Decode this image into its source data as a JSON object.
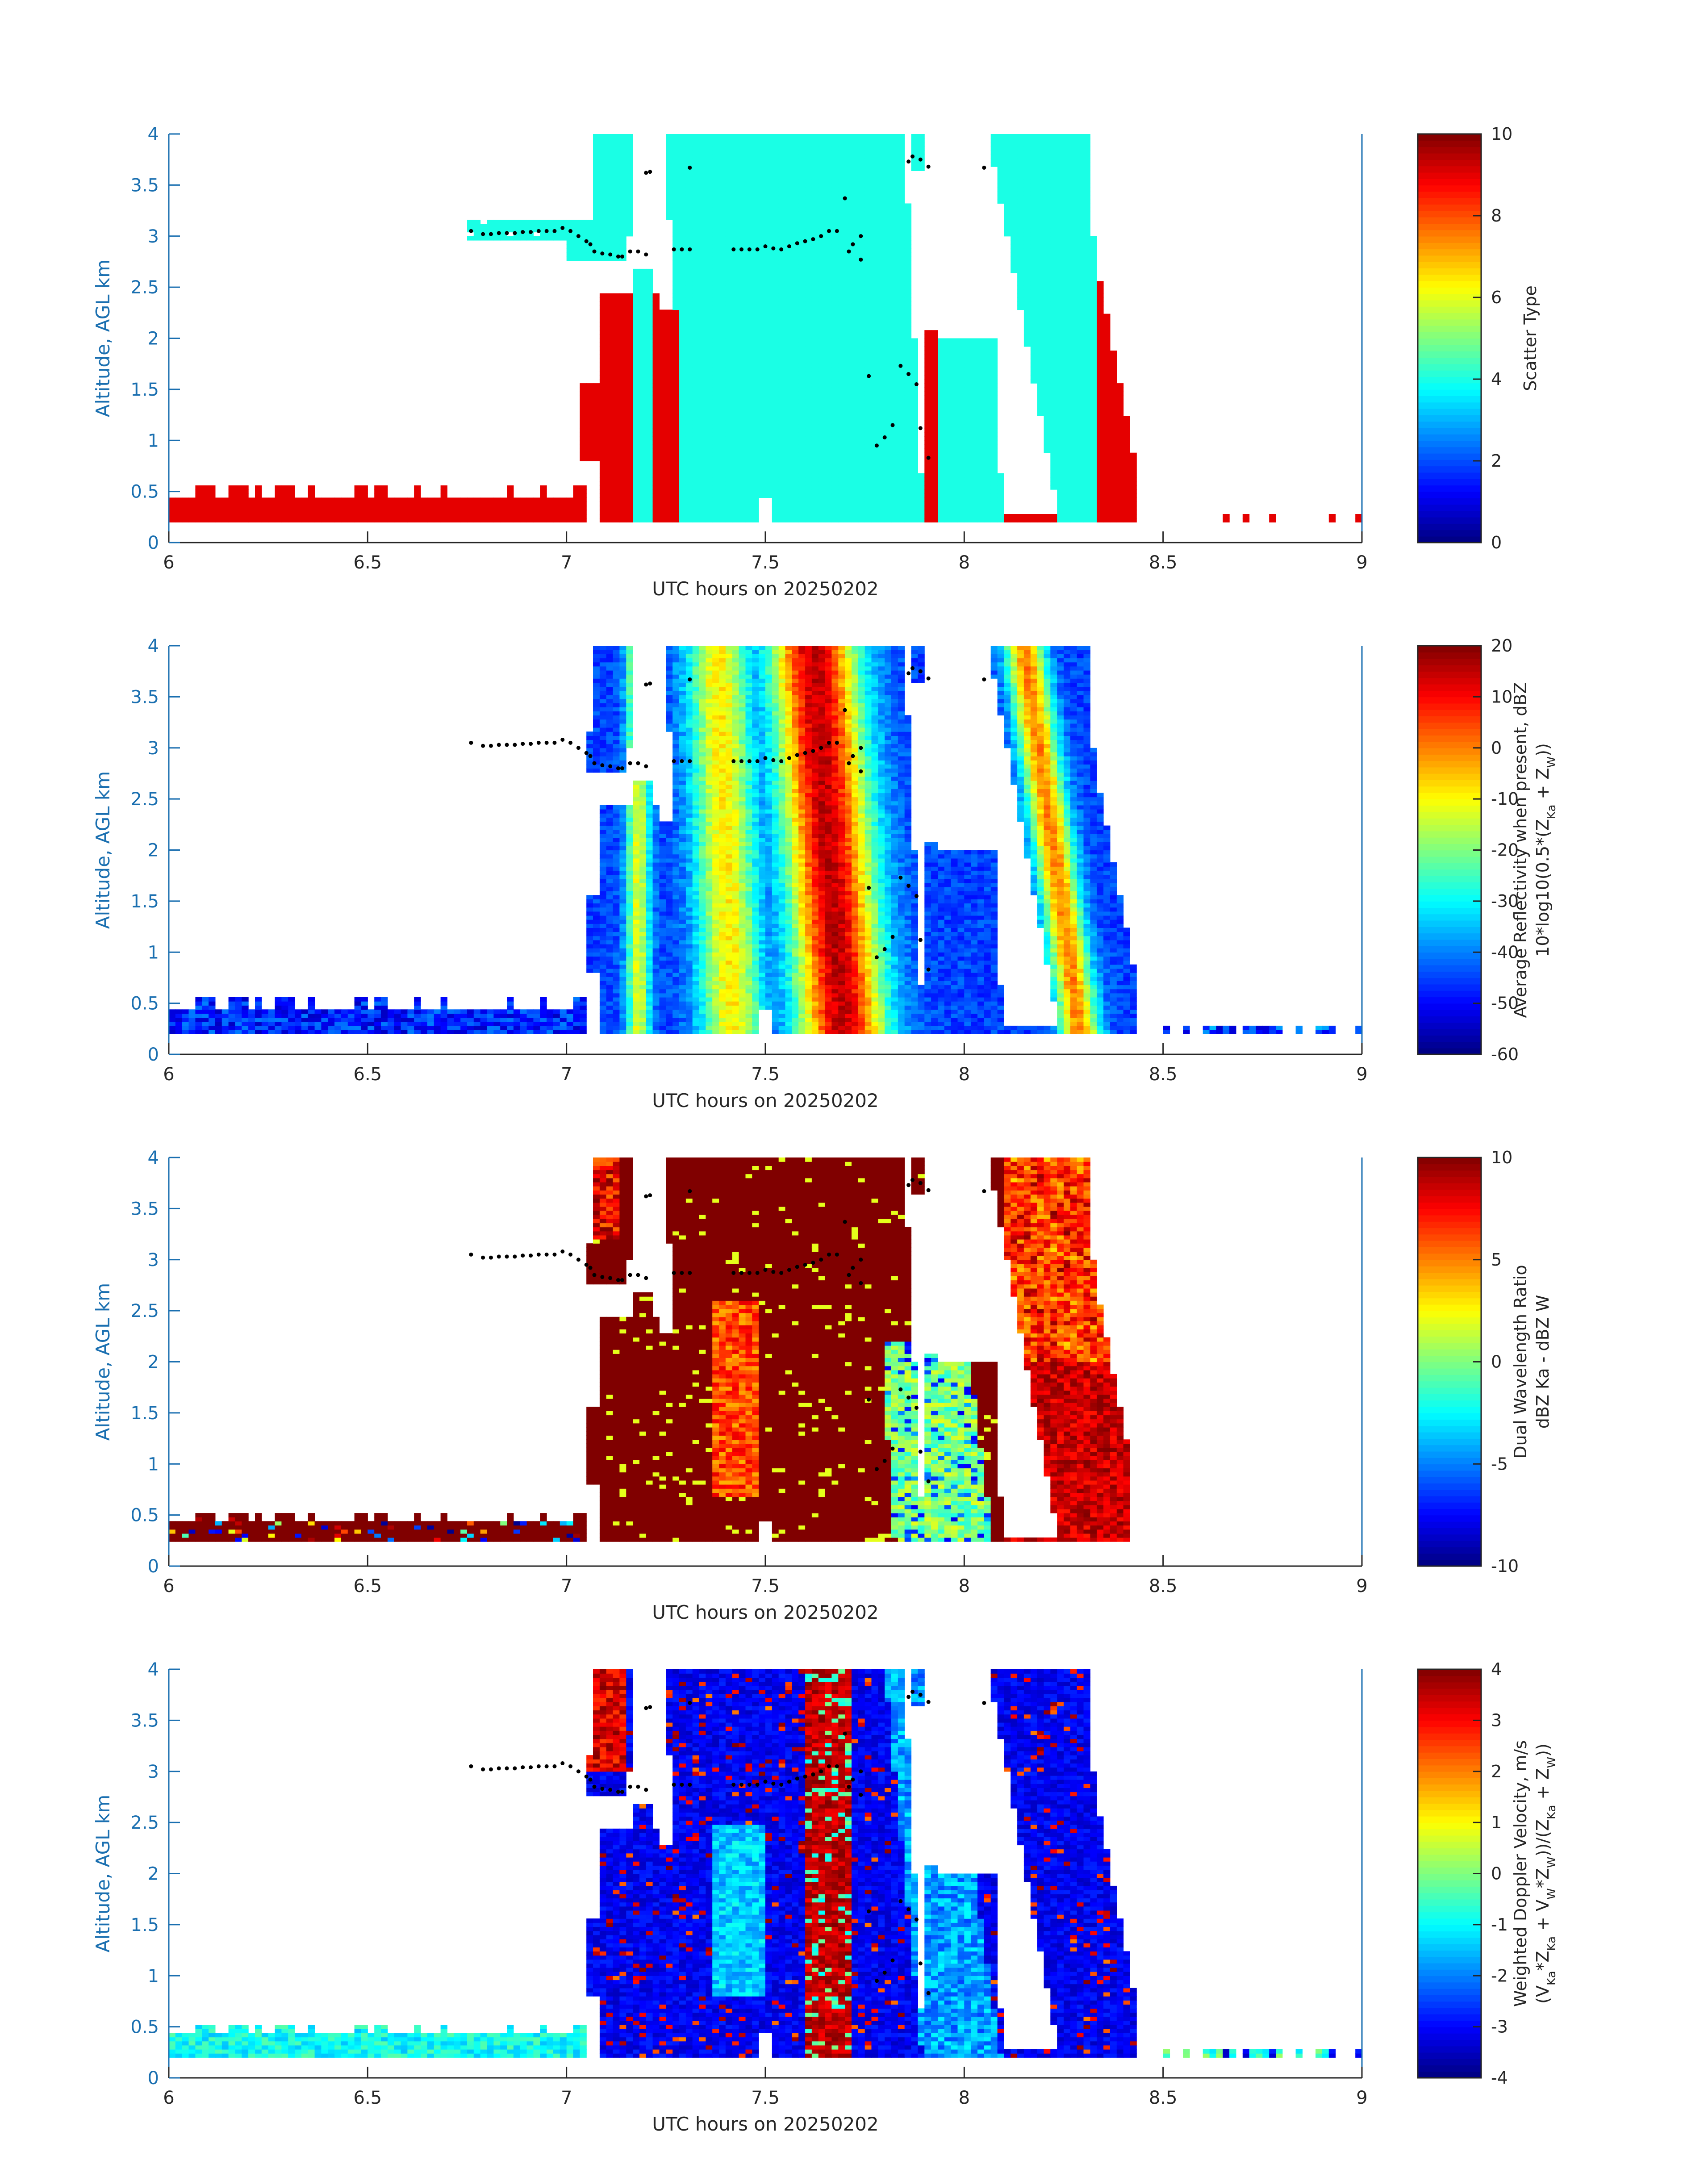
{
  "figure": {
    "x_label": "UTC hours on 20250202",
    "y_label": "Altitude, AGL km"
  },
  "chart_data": [
    {
      "type": "heatmap",
      "xlabel": "UTC hours on 20250202",
      "ylabel": "Altitude, AGL km",
      "xlim": [
        6,
        9
      ],
      "ylim": [
        0,
        4
      ],
      "xticks": [
        "6",
        "6.5",
        "7",
        "7.5",
        "8",
        "8.5",
        "9"
      ],
      "yticks": [
        "0",
        "0.5",
        "1",
        "1.5",
        "2",
        "2.5",
        "3",
        "3.5",
        "4"
      ],
      "colorbar": {
        "label_lines": [
          "Scatter Type"
        ],
        "range": [
          0,
          10
        ],
        "ticks": [
          "0",
          "2",
          "4",
          "6",
          "8",
          "10"
        ]
      },
      "colormap": "jet",
      "field": "scatter_type",
      "grid": false
    },
    {
      "type": "heatmap",
      "xlabel": "UTC hours on 20250202",
      "ylabel": "Altitude, AGL km",
      "xlim": [
        6,
        9
      ],
      "ylim": [
        0,
        4
      ],
      "xticks": [
        "6",
        "6.5",
        "7",
        "7.5",
        "8",
        "8.5",
        "9"
      ],
      "yticks": [
        "0",
        "0.5",
        "1",
        "1.5",
        "2",
        "2.5",
        "3",
        "3.5",
        "4"
      ],
      "colorbar": {
        "label_lines": [
          "Average Reflectivity when present, dBZ",
          "10*log10(0.5*(Z_Ka + Z_W))"
        ],
        "range": [
          -60,
          20
        ],
        "ticks": [
          "-60",
          "-50",
          "-40",
          "-30",
          "-20",
          "-10",
          "0",
          "10",
          "20"
        ]
      },
      "colormap": "jet",
      "field": "reflectivity",
      "grid": false
    },
    {
      "type": "heatmap",
      "xlabel": "UTC hours on 20250202",
      "ylabel": "Altitude, AGL km",
      "xlim": [
        6,
        9
      ],
      "ylim": [
        0,
        4
      ],
      "xticks": [
        "6",
        "6.5",
        "7",
        "7.5",
        "8",
        "8.5",
        "9"
      ],
      "yticks": [
        "0",
        "0.5",
        "1",
        "1.5",
        "2",
        "2.5",
        "3",
        "3.5",
        "4"
      ],
      "colorbar": {
        "label_lines": [
          "Dual Wavelength Ratio",
          "dBZ Ka - dBZ W"
        ],
        "range": [
          -10,
          10
        ],
        "ticks": [
          "-10",
          "-5",
          "0",
          "5",
          "10"
        ]
      },
      "colormap": "jet",
      "field": "dwr",
      "grid": false
    },
    {
      "type": "heatmap",
      "xlabel": "UTC hours on 20250202",
      "ylabel": "Altitude, AGL km",
      "xlim": [
        6,
        9
      ],
      "ylim": [
        0,
        4
      ],
      "xticks": [
        "6",
        "6.5",
        "7",
        "7.5",
        "8",
        "8.5",
        "9"
      ],
      "yticks": [
        "0",
        "0.5",
        "1",
        "1.5",
        "2",
        "2.5",
        "3",
        "3.5",
        "4"
      ],
      "colorbar": {
        "label_lines": [
          "Weighted Doppler Velocity, m/s",
          "(V_Ka*Z_Ka + V_W*Z_W))/(Z_Ka + Z_W))"
        ],
        "range": [
          -4,
          4
        ],
        "ticks": [
          "-4",
          "-3",
          "-2",
          "-1",
          "0",
          "1",
          "2",
          "3",
          "4"
        ]
      },
      "colormap": "jet",
      "field": "velocity",
      "grid": false
    }
  ],
  "cloud_base_dots": {
    "color": "#000000",
    "points": [
      [
        6.76,
        3.05
      ],
      [
        6.79,
        3.02
      ],
      [
        6.81,
        3.02
      ],
      [
        6.83,
        3.03
      ],
      [
        6.85,
        3.03
      ],
      [
        6.87,
        3.03
      ],
      [
        6.89,
        3.04
      ],
      [
        6.91,
        3.04
      ],
      [
        6.93,
        3.05
      ],
      [
        6.95,
        3.05
      ],
      [
        6.97,
        3.05
      ],
      [
        6.99,
        3.08
      ],
      [
        7.01,
        3.05
      ],
      [
        7.03,
        3.0
      ],
      [
        7.05,
        2.95
      ],
      [
        7.06,
        2.92
      ],
      [
        7.07,
        2.85
      ],
      [
        7.09,
        2.83
      ],
      [
        7.11,
        2.82
      ],
      [
        7.13,
        2.8
      ],
      [
        7.14,
        2.8
      ],
      [
        7.16,
        2.85
      ],
      [
        7.18,
        2.85
      ],
      [
        7.2,
        2.82
      ],
      [
        7.2,
        3.62
      ],
      [
        7.21,
        3.63
      ],
      [
        7.27,
        2.87
      ],
      [
        7.29,
        2.87
      ],
      [
        7.31,
        2.87
      ],
      [
        7.31,
        3.67
      ],
      [
        7.42,
        2.87
      ],
      [
        7.44,
        2.87
      ],
      [
        7.46,
        2.87
      ],
      [
        7.48,
        2.87
      ],
      [
        7.5,
        2.9
      ],
      [
        7.52,
        2.88
      ],
      [
        7.54,
        2.87
      ],
      [
        7.56,
        2.9
      ],
      [
        7.58,
        2.93
      ],
      [
        7.6,
        2.95
      ],
      [
        7.62,
        2.97
      ],
      [
        7.64,
        3.0
      ],
      [
        7.66,
        3.05
      ],
      [
        7.68,
        3.05
      ],
      [
        7.7,
        3.37
      ],
      [
        7.71,
        2.85
      ],
      [
        7.72,
        2.92
      ],
      [
        7.74,
        2.77
      ],
      [
        7.74,
        3.0
      ],
      [
        7.76,
        1.63
      ],
      [
        7.78,
        0.95
      ],
      [
        7.8,
        1.03
      ],
      [
        7.82,
        1.15
      ],
      [
        7.84,
        1.73
      ],
      [
        7.86,
        1.65
      ],
      [
        7.88,
        1.55
      ],
      [
        7.89,
        1.12
      ],
      [
        7.91,
        0.83
      ],
      [
        7.86,
        3.73
      ],
      [
        7.87,
        3.78
      ],
      [
        7.89,
        3.75
      ],
      [
        7.91,
        3.68
      ],
      [
        8.05,
        3.67
      ]
    ]
  }
}
